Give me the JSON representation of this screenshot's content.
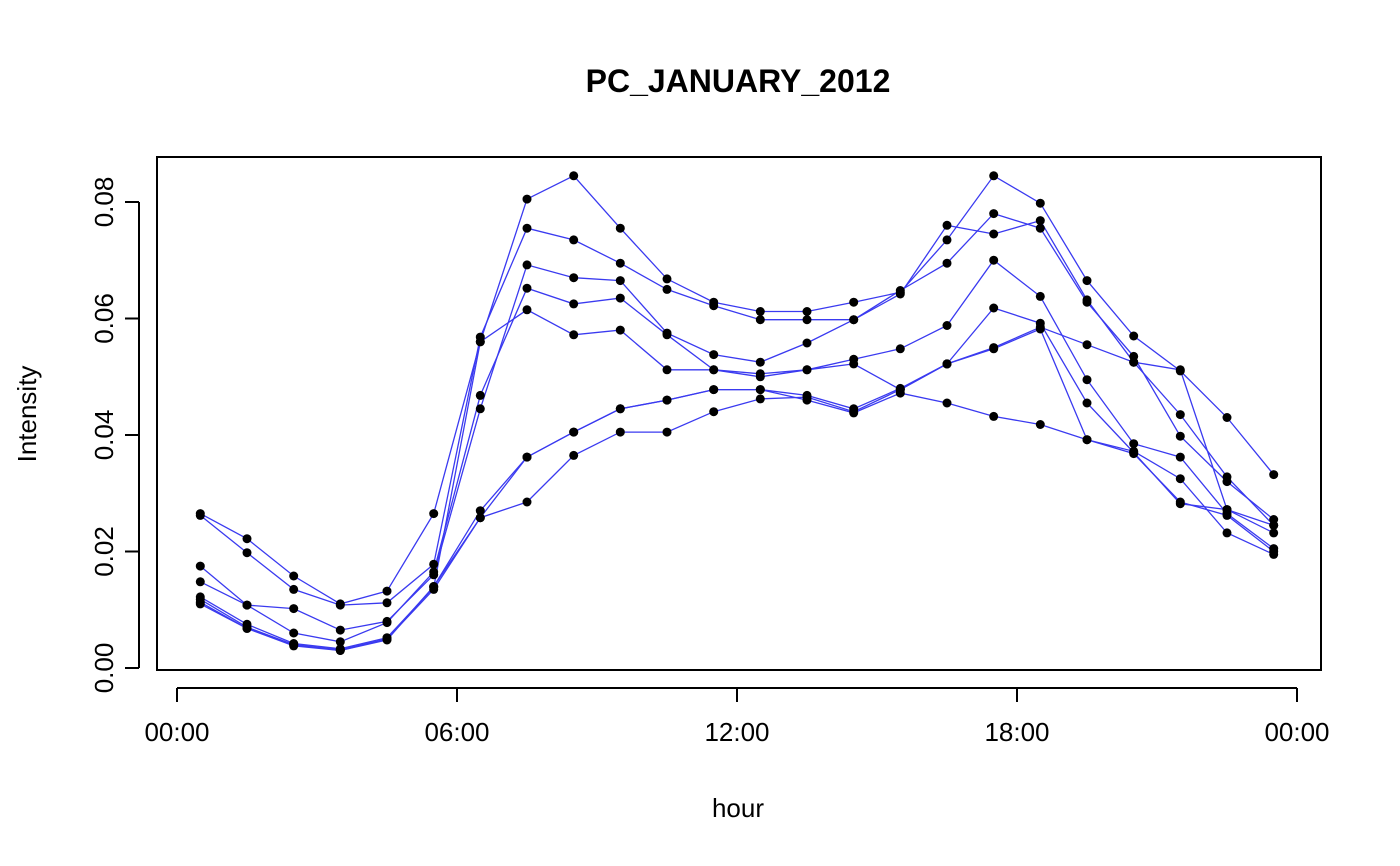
{
  "chart_data": {
    "type": "line",
    "title": "PC_JANUARY_2012",
    "xlabel": "hour",
    "ylabel": "Intensity",
    "xlim": [
      -0.5,
      24.0
    ],
    "ylim": [
      0,
      0.088
    ],
    "x_ticks": [
      0,
      6,
      12,
      18,
      24
    ],
    "x_tick_labels": [
      "00:00",
      "06:00",
      "12:00",
      "18:00",
      "00:00"
    ],
    "y_ticks": [
      0.0,
      0.02,
      0.04,
      0.06,
      0.08
    ],
    "y_tick_labels": [
      "0.00",
      "0.02",
      "0.04",
      "0.06",
      "0.08"
    ],
    "x": [
      0.5,
      1.5,
      2.5,
      3.5,
      4.5,
      5.5,
      6.5,
      7.5,
      8.5,
      9.5,
      10.5,
      11.5,
      12.5,
      13.5,
      14.5,
      15.5,
      16.5,
      17.5,
      18.5,
      19.5,
      20.5,
      21.5,
      22.5,
      23.5
    ],
    "series": [
      {
        "values": [
          0.0265,
          0.0222,
          0.0158,
          0.011,
          0.0132,
          0.0265,
          0.056,
          0.0805,
          0.0845,
          0.0755,
          0.0668,
          0.0628,
          0.0612,
          0.0612,
          0.0628,
          0.0645,
          0.0735,
          0.0845,
          0.0798,
          0.0665,
          0.057,
          0.051,
          0.043,
          0.0332
        ]
      },
      {
        "values": [
          0.0262,
          0.0198,
          0.0135,
          0.0108,
          0.0112,
          0.0178,
          0.0568,
          0.0755,
          0.0735,
          0.0695,
          0.065,
          0.0622,
          0.0598,
          0.0598,
          0.0598,
          0.0642,
          0.076,
          0.0745,
          0.0768,
          0.0632,
          0.0525,
          0.0435,
          0.0328,
          0.0245
        ]
      },
      {
        "values": [
          0.0175,
          0.0108,
          0.0102,
          0.0065,
          0.008,
          0.016,
          0.0445,
          0.0692,
          0.067,
          0.0665,
          0.0575,
          0.0538,
          0.0525,
          0.0558,
          0.0598,
          0.0648,
          0.0695,
          0.078,
          0.0755,
          0.0628,
          0.0535,
          0.0398,
          0.032,
          0.0255
        ]
      },
      {
        "values": [
          0.0148,
          0.0108,
          0.006,
          0.0045,
          0.0078,
          0.0165,
          0.0468,
          0.0652,
          0.0625,
          0.0635,
          0.0572,
          0.0512,
          0.0505,
          0.0512,
          0.053,
          0.0548,
          0.0588,
          0.07,
          0.0638,
          0.0495,
          0.0385,
          0.0362,
          0.0265,
          0.0205
        ]
      },
      {
        "values": [
          0.0122,
          0.0075,
          0.0042,
          0.0033,
          0.0052,
          0.0138,
          0.056,
          0.0615,
          0.0572,
          0.058,
          0.0512,
          0.0512,
          0.05,
          0.0512,
          0.0522,
          0.0478,
          0.0522,
          0.0618,
          0.0592,
          0.0455,
          0.037,
          0.0282,
          0.0272,
          0.0232
        ]
      },
      {
        "values": [
          0.011,
          0.0068,
          0.0038,
          0.003,
          0.005,
          0.0135,
          0.0258,
          0.0285,
          0.0365,
          0.0405,
          0.0405,
          0.044,
          0.0462,
          0.0465,
          0.044,
          0.0478,
          0.0522,
          0.055,
          0.0585,
          0.0555,
          0.0525,
          0.0512,
          0.0272,
          0.0245
        ]
      },
      {
        "values": [
          0.0118,
          0.007,
          0.004,
          0.003,
          0.0048,
          0.014,
          0.027,
          0.0362,
          0.0405,
          0.0445,
          0.046,
          0.0478,
          0.0478,
          0.046,
          0.0438,
          0.0472,
          0.0455,
          0.0432,
          0.0418,
          0.0392,
          0.0372,
          0.0325,
          0.0232,
          0.0195
        ]
      },
      {
        "values": [
          0.0113,
          0.0068,
          0.004,
          0.0031,
          0.005,
          0.014,
          0.0258,
          0.0362,
          0.0405,
          0.0445,
          0.046,
          0.0478,
          0.0478,
          0.0468,
          0.0445,
          0.048,
          0.0522,
          0.0548,
          0.0582,
          0.0392,
          0.0368,
          0.0285,
          0.0262,
          0.02
        ]
      }
    ],
    "line_color": "#3a3af0",
    "point_color": "#000000",
    "grid": false,
    "legend": false
  }
}
